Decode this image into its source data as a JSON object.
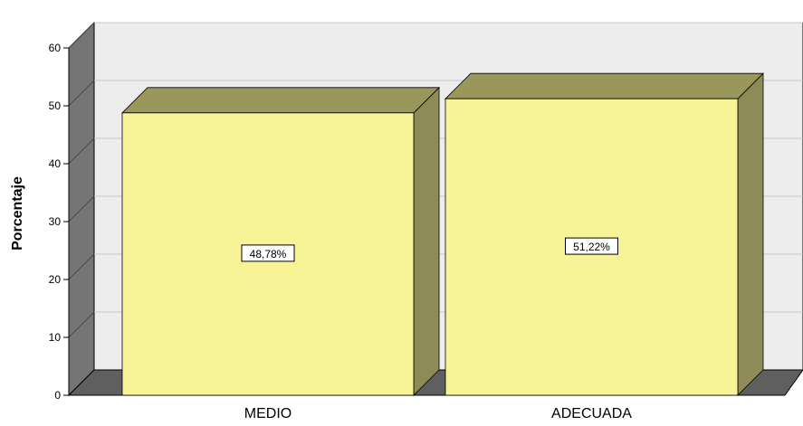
{
  "chart_data": {
    "type": "bar",
    "categories": [
      "MEDIO",
      "ADECUADA"
    ],
    "values": [
      48.78,
      51.22
    ],
    "data_labels": [
      "48,78%",
      "51,22%"
    ],
    "title": "",
    "xlabel": "",
    "ylabel": "Porcentaje",
    "ylim": [
      0,
      60
    ],
    "yticks": [
      0,
      10,
      20,
      30,
      40,
      50,
      60
    ],
    "grid": true,
    "three_d": true,
    "colors": {
      "bar_front": "#f7f497",
      "bar_top": "#9a975c",
      "bar_side": "#8e8b59",
      "wall": "#ededed",
      "wall_side": "#757575",
      "floor": "#5f5f5f",
      "gridline": "#c8c8c8"
    }
  }
}
